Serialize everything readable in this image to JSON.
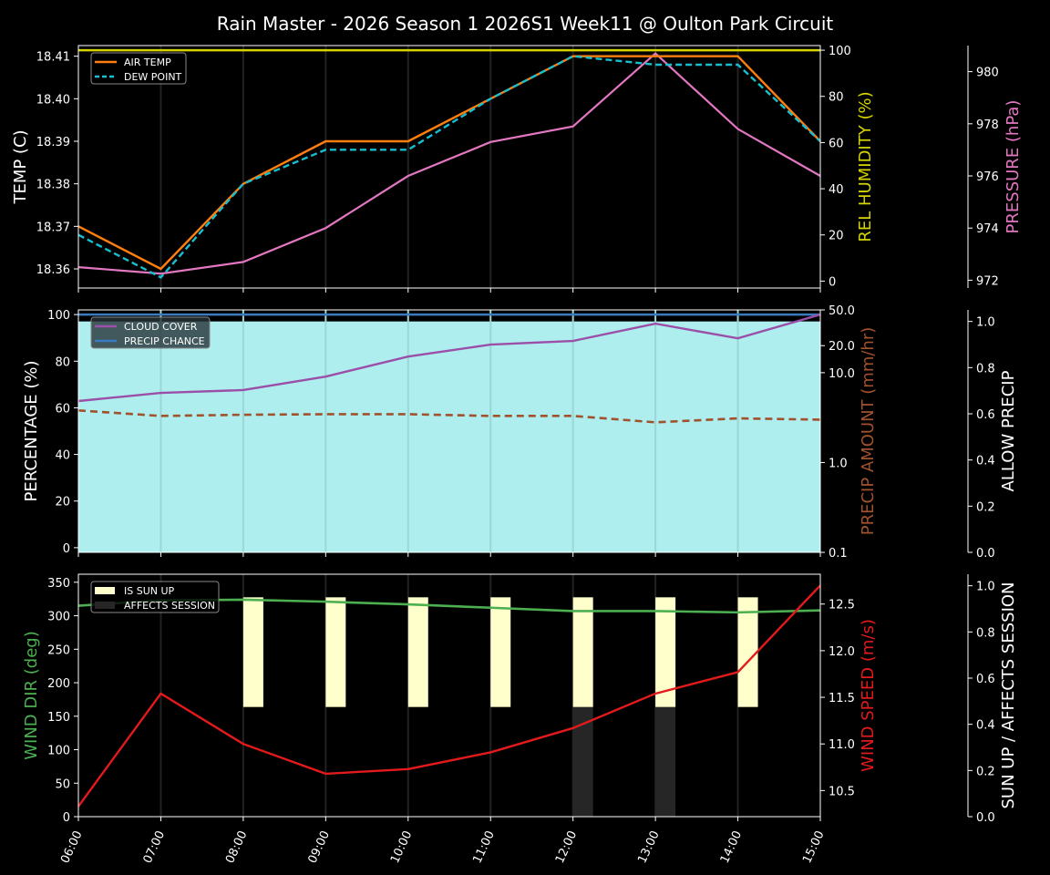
{
  "title": "Rain Master - 2026 Season 1 2026S1 Week11 @ Oulton Park Circuit",
  "colors": {
    "air_temp": "#ff7f0e",
    "dew_point": "#17becf",
    "humidity": "#d4d400",
    "pressure": "#e377c2",
    "cloud_cover": "#9b4fa8",
    "precip_chance": "#3a7bbf",
    "precip_amount": "#a0522d",
    "allow_precip_fill": "#afeeee",
    "wind_dir": "#4caf50",
    "wind_speed": "#e31a1c",
    "sun_up": "#ffffcc",
    "affects_session": "#262626"
  },
  "chart_data": [
    {
      "type": "line",
      "title": "Rain Master - 2026 Season 1 2026S1 Week11 @ Oulton Park Circuit",
      "x": [
        "06:00",
        "07:00",
        "08:00",
        "09:00",
        "10:00",
        "11:00",
        "12:00",
        "13:00",
        "14:00",
        "15:00"
      ],
      "ylabel": "TEMP (C)",
      "ylabel_right": "REL HUMIDITY (%)",
      "ylabel_right2": "PRESSURE (hPa)",
      "yticks": [
        "18.36",
        "18.37",
        "18.38",
        "18.39",
        "18.40",
        "18.41"
      ],
      "yticks_right": [
        "0",
        "20",
        "40",
        "60",
        "80",
        "100"
      ],
      "yticks_right2": [
        "972",
        "974",
        "976",
        "978",
        "980"
      ],
      "ylim": [
        18.3555,
        18.4125
      ],
      "ylim_right": [
        -3,
        102
      ],
      "ylim_right2": [
        971.7,
        981.0
      ],
      "legend": [
        "AIR TEMP",
        "DEW POINT"
      ],
      "series": [
        {
          "name": "AIR TEMP",
          "axis": "left",
          "values": [
            18.37,
            18.36,
            18.38,
            18.39,
            18.39,
            18.4,
            18.41,
            18.41,
            18.41,
            18.39
          ]
        },
        {
          "name": "DEW POINT",
          "axis": "left",
          "style": "dashed",
          "values": [
            18.368,
            18.358,
            18.38,
            18.388,
            18.388,
            18.4,
            18.41,
            18.408,
            18.408,
            18.39
          ]
        },
        {
          "name": "REL HUMIDITY",
          "axis": "right",
          "values": [
            100,
            100,
            100,
            100,
            100,
            100,
            100,
            100,
            100,
            100
          ]
        },
        {
          "name": "PRESSURE",
          "axis": "right2",
          "values": [
            972.5,
            972.25,
            972.7,
            974.0,
            976.0,
            977.3,
            977.9,
            980.7,
            977.8,
            976.0
          ]
        }
      ],
      "grid": false
    },
    {
      "type": "line",
      "x": [
        "06:00",
        "07:00",
        "08:00",
        "09:00",
        "10:00",
        "11:00",
        "12:00",
        "13:00",
        "14:00",
        "15:00"
      ],
      "ylabel": "PERCENTAGE (%)",
      "ylabel_right": "PRECIP AMOUNT (mm/hr)",
      "ylabel_right2": "ALLOW PRECIP",
      "yticks": [
        "0",
        "20",
        "40",
        "60",
        "80",
        "100"
      ],
      "yticks_right": [
        "0.1",
        "1.0",
        "10.0",
        "20.0",
        "50.0"
      ],
      "yticks_right2": [
        "0.0",
        "0.2",
        "0.4",
        "0.6",
        "0.8",
        "1.0"
      ],
      "ylim": [
        -2,
        102
      ],
      "ylim_right": [
        0.1,
        50
      ],
      "yscale_right": "log",
      "ylim_right2": [
        0,
        1.05
      ],
      "legend": [
        "CLOUD COVER",
        "PRECIP CHANCE"
      ],
      "series": [
        {
          "name": "CLOUD COVER",
          "axis": "left",
          "values": [
            62.9,
            66.4,
            67.6,
            73.4,
            82.0,
            87.1,
            88.7,
            96.1,
            89.8,
            100
          ]
        },
        {
          "name": "PRECIP CHANCE",
          "axis": "left",
          "values": [
            100,
            100,
            100,
            100,
            100,
            100,
            100,
            100,
            100,
            100
          ]
        },
        {
          "name": "PRECIP AMOUNT",
          "axis": "right",
          "style": "dashed",
          "values": [
            3.8,
            3.3,
            3.4,
            3.45,
            3.45,
            3.3,
            3.3,
            2.8,
            3.1,
            3.0
          ]
        },
        {
          "name": "ALLOW PRECIP",
          "axis": "right2",
          "type": "area",
          "values": [
            1,
            1,
            1,
            1,
            1,
            1,
            1,
            1,
            1,
            1
          ]
        }
      ]
    },
    {
      "type": "line",
      "x": [
        "06:00",
        "07:00",
        "08:00",
        "09:00",
        "10:00",
        "11:00",
        "12:00",
        "13:00",
        "14:00",
        "15:00"
      ],
      "ylabel": "WIND DIR (deg)",
      "ylabel_right": "WIND SPEED (m/s)",
      "ylabel_right2": "SUN UP / AFFECTS SESSION",
      "yticks": [
        "0",
        "50",
        "100",
        "150",
        "200",
        "250",
        "300",
        "350"
      ],
      "yticks_right": [
        "10.5",
        "11.0",
        "11.5",
        "12.0",
        "12.5"
      ],
      "yticks_right2": [
        "0.0",
        "0.2",
        "0.4",
        "0.6",
        "0.8",
        "1.0"
      ],
      "ylim": [
        0,
        362
      ],
      "ylim_right": [
        10.22,
        12.82
      ],
      "ylim_right2": [
        0,
        1.05
      ],
      "legend": [
        "IS SUN UP",
        "AFFECTS SESSION"
      ],
      "series": [
        {
          "name": "WIND DIR",
          "axis": "left",
          "values": [
            315,
            323,
            324,
            321,
            317,
            312,
            307,
            307,
            305,
            308
          ]
        },
        {
          "name": "WIND SPEED",
          "axis": "right",
          "values": [
            10.33,
            11.54,
            11.0,
            10.68,
            10.73,
            10.91,
            11.17,
            11.54,
            11.77,
            12.7
          ]
        },
        {
          "name": "IS SUN UP",
          "axis": "right2",
          "type": "bar",
          "values": [
            0,
            0,
            1,
            1,
            1,
            1,
            1,
            1,
            1,
            0
          ]
        },
        {
          "name": "AFFECTS SESSION",
          "axis": "right2",
          "type": "bar",
          "values": [
            0,
            0,
            0,
            0,
            0,
            0,
            1,
            1,
            0,
            0
          ]
        }
      ]
    }
  ]
}
